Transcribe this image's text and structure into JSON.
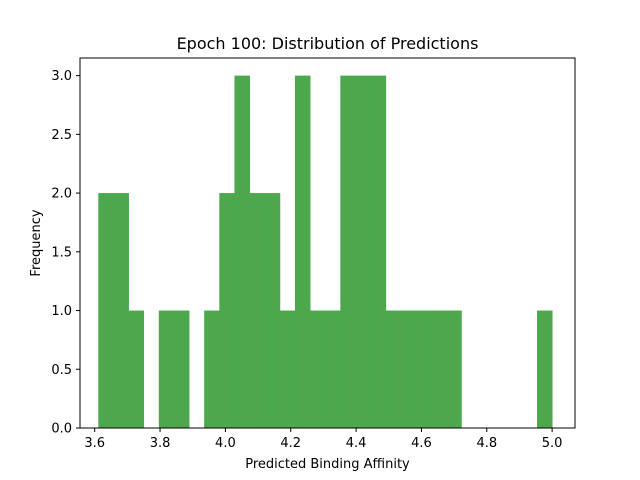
{
  "chart_data": {
    "type": "bar",
    "title": "Epoch 100: Distribution of Predictions",
    "xlabel": "Predicted Binding Affinity",
    "ylabel": "Frequency",
    "xlim": [
      3.555,
      5.07
    ],
    "ylim": [
      0,
      3.15
    ],
    "xticks": [
      "3.6",
      "3.8",
      "4.0",
      "4.2",
      "4.4",
      "4.6",
      "4.8",
      "5.0"
    ],
    "yticks": [
      "0.0",
      "0.5",
      "1.0",
      "1.5",
      "2.0",
      "2.5",
      "3.0"
    ],
    "bar_color": "#4da84d",
    "bin_range": [
      3.611,
      5.0
    ],
    "bin_count": 30,
    "values": [
      2,
      2,
      1,
      0,
      1,
      1,
      0,
      1,
      2,
      3,
      2,
      2,
      1,
      3,
      1,
      1,
      3,
      3,
      3,
      1,
      1,
      1,
      1,
      1,
      0,
      0,
      0,
      0,
      0,
      1
    ],
    "grid": false,
    "legend": "none"
  }
}
